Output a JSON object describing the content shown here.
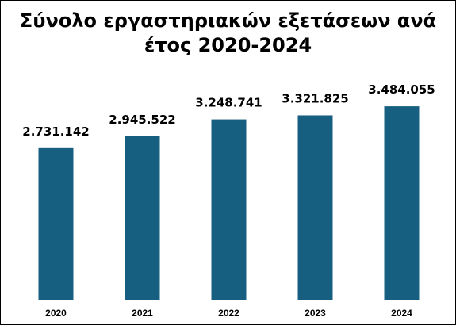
{
  "chart_data": {
    "type": "bar",
    "title_lines": [
      "Σύνολο εργαστηριακών εξετάσεων ανά",
      "έτος 2020-2024"
    ],
    "categories": [
      "2020",
      "2021",
      "2022",
      "2023",
      "2024"
    ],
    "values": [
      2731142,
      2945522,
      3248741,
      3321825,
      3484055
    ],
    "data_labels": [
      "2.731.142",
      "2.945.522",
      "3.248.741",
      "3.321.825",
      "3.484.055"
    ],
    "xlabel": "",
    "ylabel": "",
    "ylim": [
      0,
      4000000
    ],
    "grid": false,
    "legend": "none",
    "bar_color": "#165f80"
  }
}
